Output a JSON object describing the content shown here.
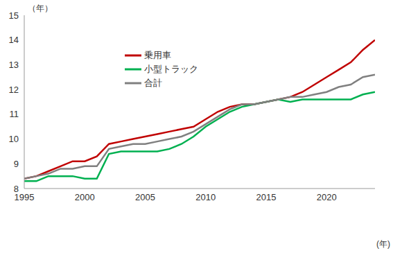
{
  "chart_data": {
    "type": "line",
    "y_label": "（年）",
    "x_label": "(年)",
    "x": [
      1995,
      1996,
      1997,
      1998,
      1999,
      2000,
      2001,
      2002,
      2003,
      2004,
      2005,
      2006,
      2007,
      2008,
      2009,
      2010,
      2011,
      2012,
      2013,
      2014,
      2015,
      2016,
      2017,
      2018,
      2019,
      2020,
      2021,
      2022,
      2023,
      2024
    ],
    "series": [
      {
        "name": "乗用車",
        "color": "#c00000",
        "values": [
          8.4,
          8.5,
          8.7,
          8.9,
          9.1,
          9.1,
          9.3,
          9.8,
          9.9,
          10.0,
          10.1,
          10.2,
          10.3,
          10.4,
          10.5,
          10.8,
          11.1,
          11.3,
          11.4,
          11.4,
          11.5,
          11.6,
          11.7,
          11.9,
          12.2,
          12.5,
          12.8,
          13.1,
          13.6,
          14.0
        ]
      },
      {
        "name": "小型トラック",
        "color": "#00b050",
        "values": [
          8.3,
          8.3,
          8.5,
          8.5,
          8.5,
          8.4,
          8.4,
          9.4,
          9.5,
          9.5,
          9.5,
          9.5,
          9.6,
          9.8,
          10.1,
          10.5,
          10.8,
          11.1,
          11.3,
          11.4,
          11.5,
          11.6,
          11.5,
          11.6,
          11.6,
          11.6,
          11.6,
          11.6,
          11.8,
          11.9
        ]
      },
      {
        "name": "合計",
        "color": "#808080",
        "values": [
          8.4,
          8.5,
          8.6,
          8.8,
          8.8,
          8.9,
          8.9,
          9.6,
          9.7,
          9.8,
          9.8,
          9.9,
          10.0,
          10.1,
          10.3,
          10.6,
          10.9,
          11.2,
          11.4,
          11.4,
          11.5,
          11.6,
          11.7,
          11.7,
          11.8,
          11.9,
          12.1,
          12.2,
          12.5,
          12.6
        ]
      }
    ],
    "xlim": [
      1995,
      2024
    ],
    "xticks": [
      1995,
      2000,
      2005,
      2010,
      2015,
      2020
    ],
    "ylim": [
      8,
      15
    ],
    "yticks": [
      8,
      9,
      10,
      11,
      12,
      13,
      14,
      15
    ],
    "grid": false,
    "legend": "upper left"
  }
}
